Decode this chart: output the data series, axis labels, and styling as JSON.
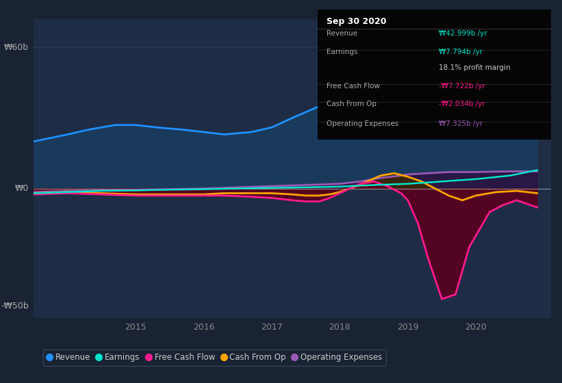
{
  "bg_color": "#1a2333",
  "plot_bg_color": "#1e2d45",
  "ylabel_top": "₩60b",
  "ylabel_zero": "₩0",
  "ylabel_bottom": "-₩50b",
  "ylim": [
    -55,
    72
  ],
  "xlim": [
    2013.5,
    2021.1
  ],
  "xticks": [
    2015,
    2016,
    2017,
    2018,
    2019,
    2020
  ],
  "legend_items": [
    {
      "label": "Revenue",
      "color": "#1e90ff"
    },
    {
      "label": "Earnings",
      "color": "#00e5cc"
    },
    {
      "label": "Free Cash Flow",
      "color": "#ff1a8c"
    },
    {
      "label": "Cash From Op",
      "color": "#ffa500"
    },
    {
      "label": "Operating Expenses",
      "color": "#9b59b6"
    }
  ],
  "info_box": {
    "title": "Sep 30 2020",
    "rows": [
      {
        "label": "Revenue",
        "value": "₩42.999b /yr",
        "value_color": "#00e5cc",
        "sep_after": true
      },
      {
        "label": "Earnings",
        "value": "₩7.794b /yr",
        "value_color": "#00e5cc",
        "sep_after": false
      },
      {
        "label": "",
        "value": "18.1% profit margin",
        "value_color": "#cccccc",
        "sep_after": true
      },
      {
        "label": "Free Cash Flow",
        "value": "-₩7.722b /yr",
        "value_color": "#ff1a8c",
        "sep_after": true
      },
      {
        "label": "Cash From Op",
        "value": "-₩2.034b /yr",
        "value_color": "#ff1a8c",
        "sep_after": true
      },
      {
        "label": "Operating Expenses",
        "value": "₩7.325b /yr",
        "value_color": "#9b59b6",
        "sep_after": false
      }
    ]
  },
  "revenue": {
    "x": [
      2013.5,
      2014.0,
      2014.3,
      2014.7,
      2015.0,
      2015.3,
      2015.7,
      2016.0,
      2016.3,
      2016.7,
      2017.0,
      2017.3,
      2017.7,
      2018.0,
      2018.3,
      2018.5,
      2018.7,
      2019.0,
      2019.2,
      2019.4,
      2019.6,
      2019.8,
      2020.0,
      2020.3,
      2020.6,
      2020.9
    ],
    "y": [
      20,
      23,
      25,
      27,
      27,
      26,
      25,
      24,
      23,
      24,
      26,
      30,
      35,
      38,
      42,
      43,
      44,
      48,
      51,
      52,
      51,
      49,
      46,
      40,
      36,
      43
    ],
    "color": "#1e90ff",
    "fill_color": "#1a3a5c",
    "lw": 2.0
  },
  "earnings": {
    "x": [
      2013.5,
      2014.0,
      2014.5,
      2015.0,
      2015.5,
      2016.0,
      2016.5,
      2017.0,
      2017.5,
      2018.0,
      2018.5,
      2019.0,
      2019.5,
      2020.0,
      2020.5,
      2020.9
    ],
    "y": [
      -2.0,
      -1.5,
      -1.0,
      -0.8,
      -0.5,
      -0.3,
      0.0,
      0.3,
      0.5,
      0.8,
      1.5,
      2.0,
      3.0,
      4.0,
      5.5,
      7.8
    ],
    "color": "#00e5cc",
    "lw": 1.8
  },
  "free_cash_flow": {
    "x": [
      2013.5,
      2014.0,
      2014.5,
      2015.0,
      2015.5,
      2016.0,
      2016.3,
      2016.7,
      2017.0,
      2017.3,
      2017.5,
      2017.7,
      2017.85,
      2018.0,
      2018.15,
      2018.3,
      2018.5,
      2018.7,
      2018.9,
      2019.0,
      2019.15,
      2019.3,
      2019.5,
      2019.7,
      2019.9,
      2020.0,
      2020.2,
      2020.4,
      2020.6,
      2020.9
    ],
    "y": [
      -2.5,
      -2.0,
      -2.5,
      -3.0,
      -3.0,
      -3.0,
      -3.0,
      -3.5,
      -4.0,
      -5.0,
      -5.5,
      -5.5,
      -4.0,
      -2.0,
      0.0,
      2.0,
      3.0,
      1.0,
      -2.0,
      -5.0,
      -15,
      -30,
      -47,
      -45,
      -25,
      -20,
      -10,
      -7,
      -5,
      -8
    ],
    "color": "#ff1a8c",
    "fill_color": "#5a0020",
    "lw": 2.0
  },
  "cash_from_op": {
    "x": [
      2013.5,
      2014.0,
      2014.5,
      2015.0,
      2015.5,
      2016.0,
      2016.3,
      2016.7,
      2017.0,
      2017.3,
      2017.5,
      2017.7,
      2017.85,
      2018.0,
      2018.2,
      2018.4,
      2018.6,
      2018.8,
      2019.0,
      2019.2,
      2019.4,
      2019.6,
      2019.8,
      2020.0,
      2020.3,
      2020.6,
      2020.9
    ],
    "y": [
      -2.0,
      -1.5,
      -2.0,
      -2.5,
      -2.5,
      -2.5,
      -2.0,
      -2.0,
      -2.0,
      -2.5,
      -3.0,
      -3.0,
      -2.5,
      -1.5,
      0.5,
      3.0,
      5.5,
      6.5,
      5.0,
      3.0,
      0.0,
      -3.0,
      -5.0,
      -3.0,
      -1.5,
      -1.0,
      -2.0
    ],
    "color": "#ffa500",
    "fill_color": "#3d2800",
    "lw": 2.0
  },
  "operating_expenses": {
    "x": [
      2013.5,
      2014.0,
      2014.5,
      2015.0,
      2015.5,
      2016.0,
      2016.5,
      2017.0,
      2017.5,
      2018.0,
      2018.3,
      2018.6,
      2018.9,
      2019.0,
      2019.3,
      2019.6,
      2019.9,
      2020.0,
      2020.3,
      2020.6,
      2020.9
    ],
    "y": [
      -1.5,
      -1.0,
      -0.8,
      -0.5,
      -0.3,
      0.0,
      0.5,
      1.0,
      1.5,
      2.0,
      3.0,
      4.5,
      5.5,
      6.0,
      6.5,
      7.0,
      7.0,
      7.0,
      7.2,
      7.3,
      7.3
    ],
    "color": "#9b59b6",
    "fill_color": "#2d1040",
    "lw": 2.0
  }
}
